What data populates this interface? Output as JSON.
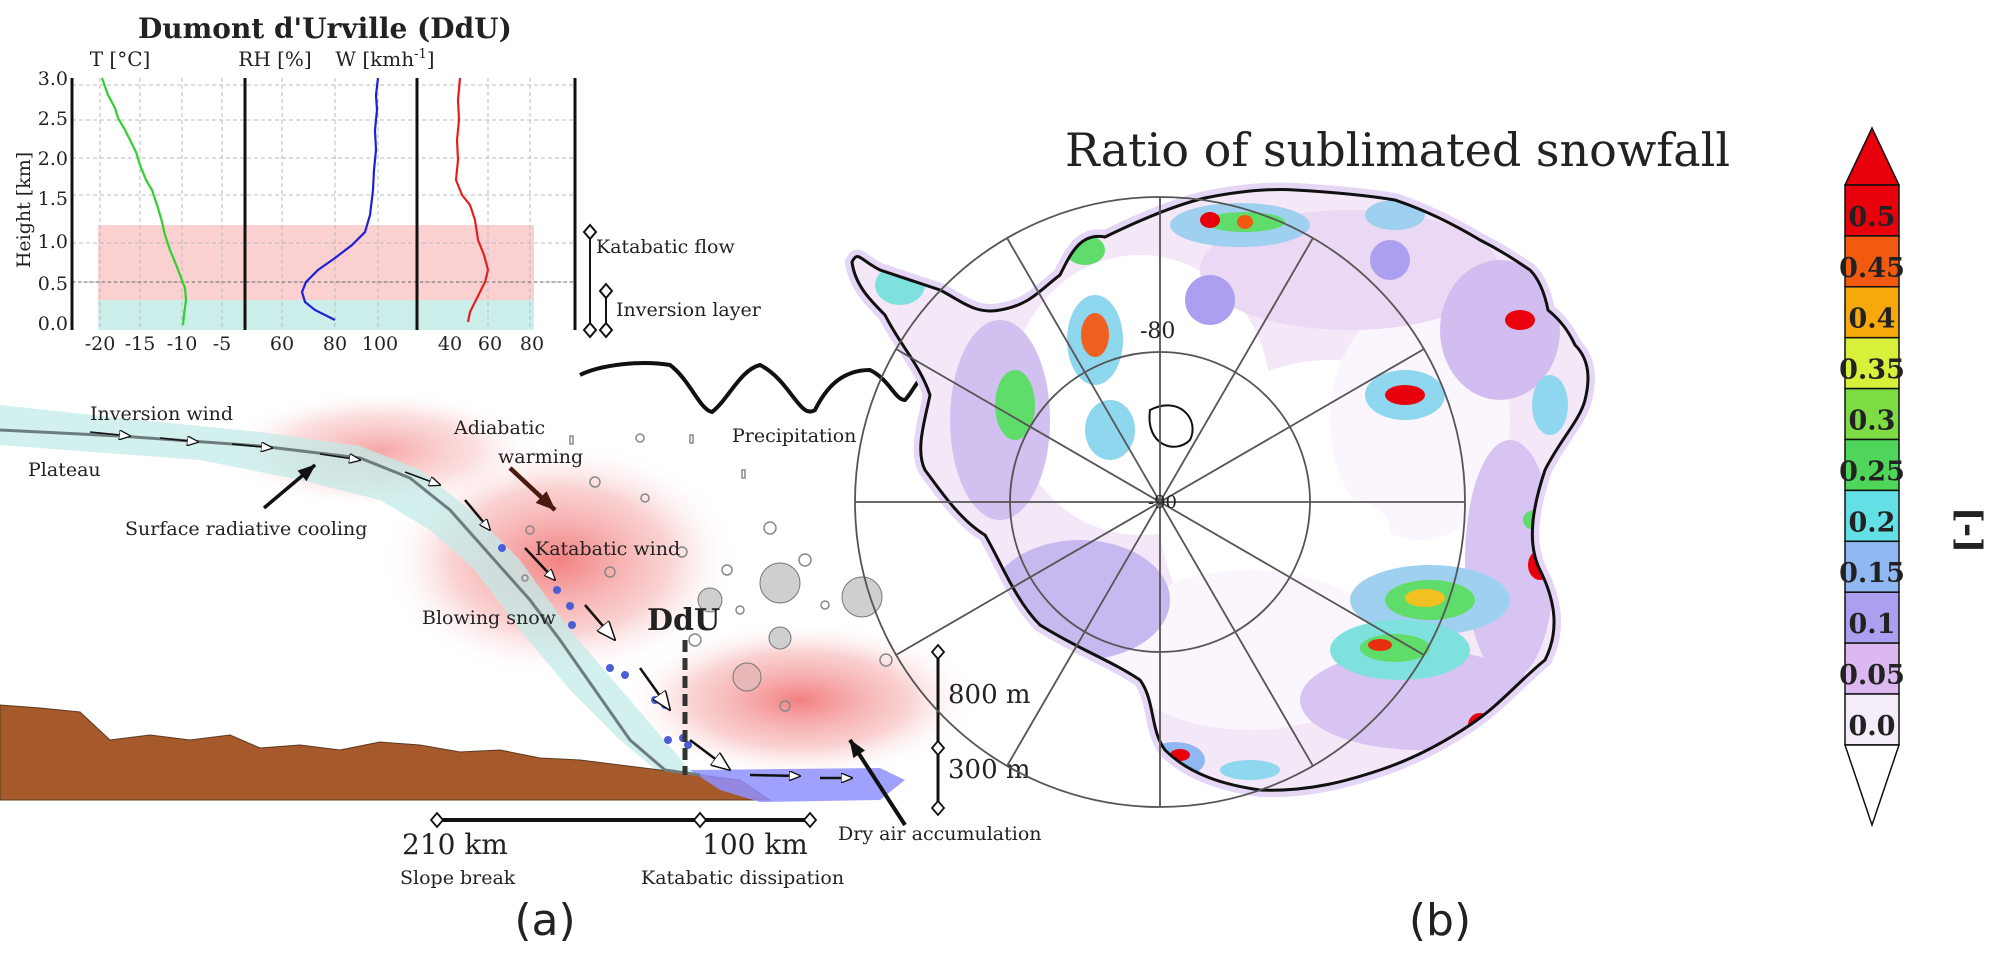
{
  "panel_a": {
    "title": "Dumont d'Urville (DdU)",
    "colors": {
      "title": "#8b1a1a",
      "temperature": "#2fd12f",
      "humidity": "#1f1fd6",
      "wind": "#e32020",
      "katabatic_band": "#f7b5b5",
      "inversion_band": "#bfe8e6",
      "ground": "#a65a2b",
      "sea_ice": "#8f8fff"
    },
    "profile_headers": {
      "t": "T [°C]",
      "rh": "RH [%]",
      "w_main": "W [kmh",
      "w_sup": "-1",
      "w_close": "]"
    },
    "y_axis": {
      "label": "Height [km]",
      "ticks": [
        "3.0",
        "2.5",
        "2.0",
        "1.5",
        "1.0",
        "0.5",
        "0.0"
      ]
    },
    "x_ticks": {
      "t": [
        "-20",
        "-15",
        "-10",
        "-5"
      ],
      "rh": [
        "60",
        "80",
        "100"
      ],
      "w": [
        "40",
        "60",
        "80"
      ]
    },
    "layer_labels": {
      "katabatic_flow": "Katabatic flow",
      "inversion_layer": "Inversion layer"
    },
    "labels": {
      "inversion_wind": "Inversion wind",
      "plateau": "Plateau",
      "surface_cooling": "Surface radiative cooling",
      "adiabatic_1": "Adiabatic",
      "adiabatic_2": "warming",
      "precipitation": "Precipitation",
      "katabatic_wind": "Katabatic wind",
      "blowing_snow": "Blowing snow",
      "ddu": "DdU",
      "height_800": "800 m",
      "height_300": "300 m",
      "dist_210": "210 km",
      "dist_100": "100 km",
      "slope_break": "Slope break",
      "katabatic_dissipation": "Katabatic dissipation",
      "dry_air": "Dry air accumulation"
    },
    "caption": "(a)"
  },
  "panel_b": {
    "title": "Ratio of sublimated snowfall",
    "lat_label": "-80",
    "center_label": "-90",
    "colorbar": {
      "unit": "[-]",
      "labels": [
        "0.5",
        "0.45",
        "0.4",
        "0.35",
        "0.3",
        "0.25",
        "0.2",
        "0.15",
        "0.1",
        "0.05",
        "0.0"
      ],
      "colors": [
        "#e8000c",
        "#f25a10",
        "#f7a80a",
        "#d9f03a",
        "#7ddc43",
        "#4fd65a",
        "#63e0e6",
        "#8fb8f2",
        "#ad9ff0",
        "#dcb8f0",
        "#f4ecf8"
      ],
      "top_cap_color": "#e8000c",
      "bottom_cap_color": "#ffffff"
    },
    "caption": "(b)"
  }
}
